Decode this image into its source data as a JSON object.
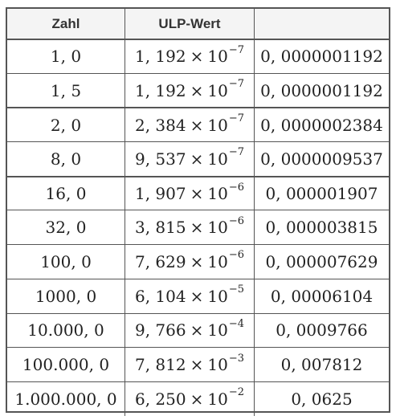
{
  "table": {
    "headers": [
      "Zahl",
      "ULP-Wert",
      ""
    ],
    "rows": [
      {
        "zahl": "1, 0",
        "mantissa": "1, 192",
        "times": "×",
        "base": "10",
        "exp": "−7",
        "decimal": "0, 0000001192"
      },
      {
        "zahl": "1, 5",
        "mantissa": "1, 192",
        "times": "×",
        "base": "10",
        "exp": "−7",
        "decimal": "0, 0000001192"
      },
      {
        "zahl": "2, 0",
        "mantissa": "2, 384",
        "times": "×",
        "base": "10",
        "exp": "−7",
        "decimal": "0, 0000002384"
      },
      {
        "zahl": "8, 0",
        "mantissa": "9, 537",
        "times": "×",
        "base": "10",
        "exp": "−7",
        "decimal": "0, 0000009537"
      },
      {
        "zahl": "16, 0",
        "mantissa": "1, 907",
        "times": "×",
        "base": "10",
        "exp": "−6",
        "decimal": "0, 000001907"
      },
      {
        "zahl": "32, 0",
        "mantissa": "3, 815",
        "times": "×",
        "base": "10",
        "exp": "−6",
        "decimal": "0, 000003815"
      },
      {
        "zahl": "100, 0",
        "mantissa": "7, 629",
        "times": "×",
        "base": "10",
        "exp": "−6",
        "decimal": "0, 000007629"
      },
      {
        "zahl": "1000, 0",
        "mantissa": "6, 104",
        "times": "×",
        "base": "10",
        "exp": "−5",
        "decimal": "0, 00006104"
      },
      {
        "zahl": "10.000, 0",
        "mantissa": "9, 766",
        "times": "×",
        "base": "10",
        "exp": "−4",
        "decimal": "0, 0009766"
      },
      {
        "zahl": "100.000, 0",
        "mantissa": "7, 812",
        "times": "×",
        "base": "10",
        "exp": "−3",
        "decimal": "0, 007812"
      },
      {
        "zahl": "1.000.000, 0",
        "mantissa": "6, 250",
        "times": "×",
        "base": "10",
        "exp": "−2",
        "decimal": "0, 0625"
      }
    ]
  }
}
